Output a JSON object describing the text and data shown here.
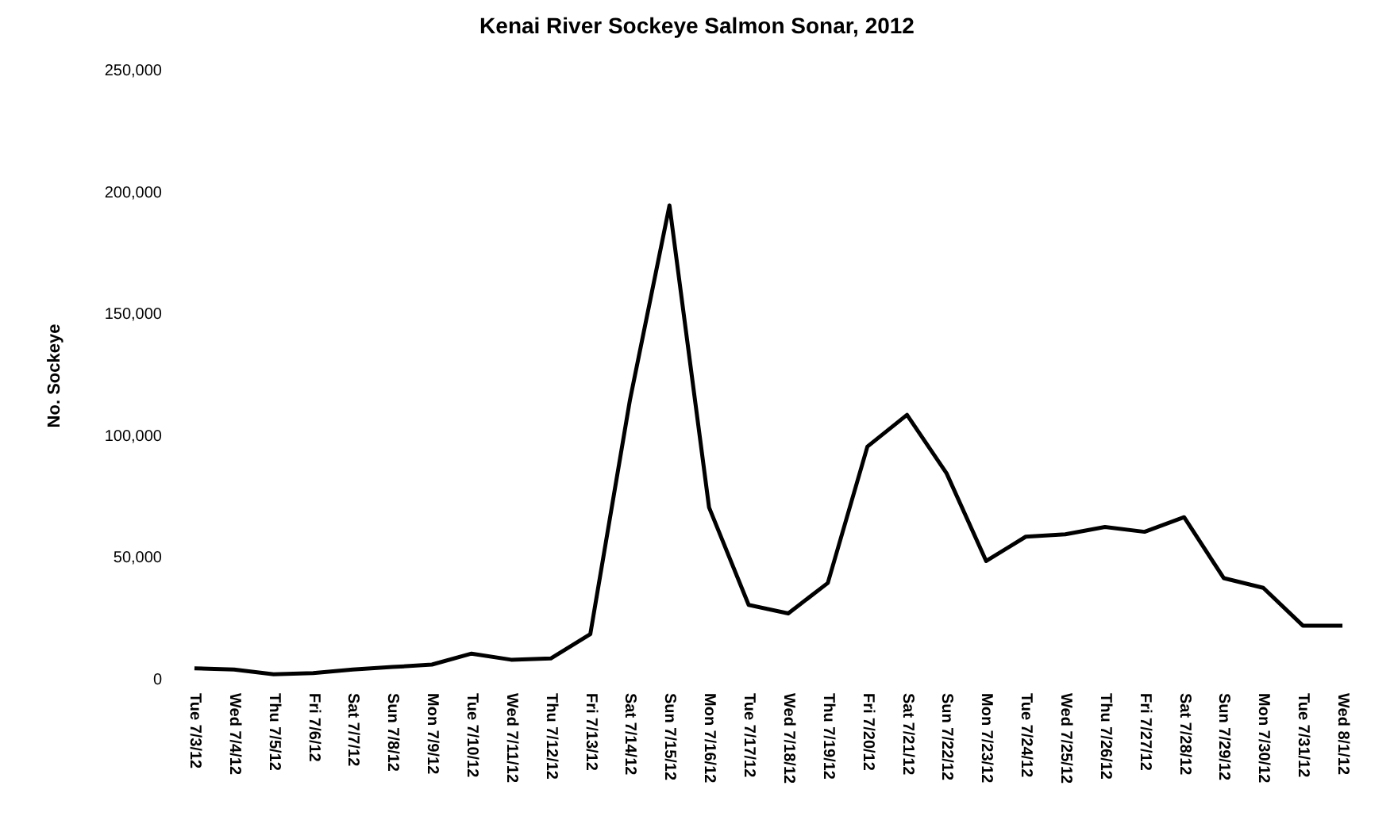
{
  "chart_data": {
    "type": "line",
    "title": "Kenai River Sockeye Salmon Sonar, 2012",
    "ylabel": "No. Sockeye",
    "categories": [
      "Tue 7/3/12",
      "Wed 7/4/12",
      "Thu 7/5/12",
      "Fri 7/6/12",
      "Sat 7/7/12",
      "Sun 7/8/12",
      "Mon 7/9/12",
      "Tue 7/10/12",
      "Wed 7/11/12",
      "Thu 7/12/12",
      "Fri 7/13/12",
      "Sat 7/14/12",
      "Sun 7/15/12",
      "Mon 7/16/12",
      "Tue 7/17/12",
      "Wed 7/18/12",
      "Thu 7/19/12",
      "Fri 7/20/12",
      "Sat 7/21/12",
      "Sun 7/22/12",
      "Mon 7/23/12",
      "Tue 7/24/12",
      "Wed 7/25/12",
      "Thu 7/26/12",
      "Fri 7/27/12",
      "Sat 7/28/12",
      "Sun 7/29/12",
      "Mon 7/30/12",
      "Tue 7/31/12",
      "Wed 8/1/12"
    ],
    "series": [
      {
        "color": "#000000",
        "values": [
          5000,
          4500,
          2500,
          3000,
          4500,
          5500,
          6500,
          11000,
          8500,
          9000,
          19000,
          115000,
          195000,
          71000,
          31000,
          27500,
          40000,
          96000,
          109000,
          85000,
          49000,
          59000,
          60000,
          63000,
          61000,
          67000,
          42000,
          38000,
          22500,
          22500
        ]
      }
    ],
    "ylim": [
      0,
      250000
    ],
    "yticks": [
      {
        "value": 0,
        "label": "0"
      },
      {
        "value": 50000,
        "label": "50,000"
      },
      {
        "value": 100000,
        "label": "100,000"
      },
      {
        "value": 150000,
        "label": "150,000"
      },
      {
        "value": 200000,
        "label": "200,000"
      },
      {
        "value": 250000,
        "label": "250,000"
      }
    ],
    "grid": false,
    "marker": "none",
    "line_style": "solid"
  }
}
